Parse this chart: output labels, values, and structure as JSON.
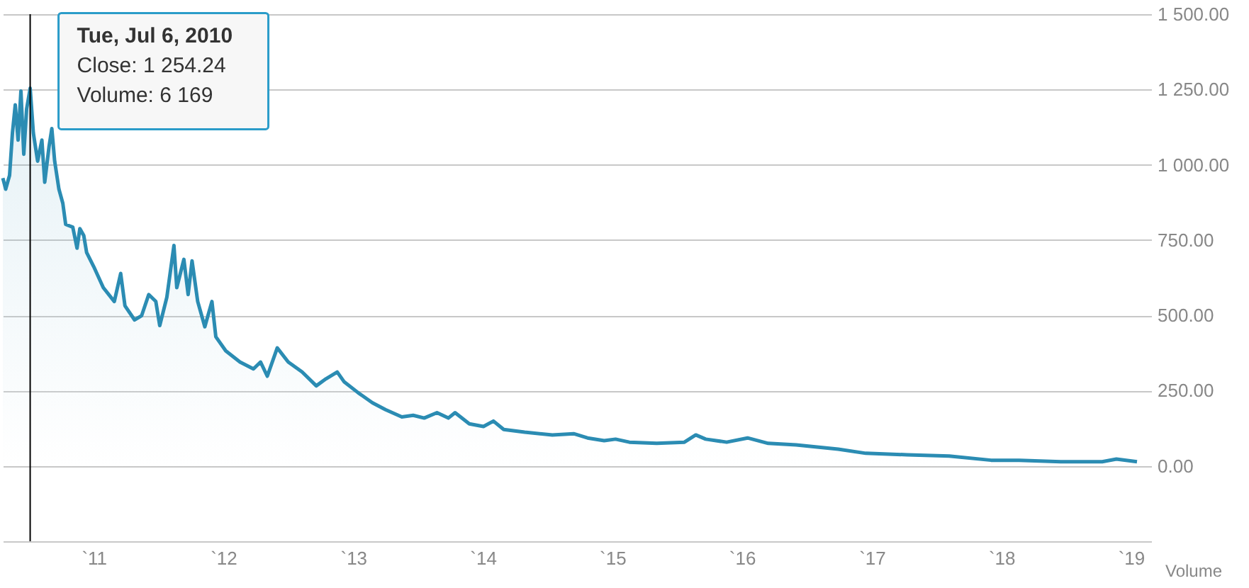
{
  "chart_data": {
    "type": "area",
    "x": [
      "2010-04-20",
      "2010-04-28",
      "2010-05-09",
      "2010-05-17",
      "2010-05-25",
      "2010-06-02",
      "2010-06-10",
      "2010-06-18",
      "2010-06-26",
      "2010-07-06",
      "2010-07-15",
      "2010-07-27",
      "2010-08-08",
      "2010-08-16",
      "2010-08-28",
      "2010-09-05",
      "2010-09-13",
      "2010-09-25",
      "2010-10-06",
      "2010-10-14",
      "2010-11-03",
      "2010-11-15",
      "2010-11-23",
      "2010-12-04",
      "2010-12-12",
      "2011-01-01",
      "2011-01-28",
      "2011-02-28",
      "2011-03-18",
      "2011-03-30",
      "2011-04-26",
      "2011-05-16",
      "2011-06-05",
      "2011-06-25",
      "2011-07-06",
      "2011-07-26",
      "2011-08-15",
      "2011-08-23",
      "2011-09-12",
      "2011-09-24",
      "2011-10-05",
      "2011-10-21",
      "2011-11-10",
      "2011-11-30",
      "2011-12-11",
      "2012-01-08",
      "2012-02-17",
      "2012-03-26",
      "2012-04-15",
      "2012-05-04",
      "2012-06-01",
      "2012-07-02",
      "2012-08-10",
      "2012-09-19",
      "2012-10-16",
      "2012-11-17",
      "2012-12-06",
      "2013-01-15",
      "2013-02-24",
      "2013-04-02",
      "2013-05-18",
      "2013-06-19",
      "2013-07-20",
      "2013-08-25",
      "2013-09-26",
      "2013-10-15",
      "2013-11-24",
      "2014-01-03",
      "2014-01-31",
      "2014-03-01",
      "2014-04-29",
      "2014-07-16",
      "2014-09-14",
      "2014-10-23",
      "2014-12-09",
      "2015-01-10",
      "2015-02-18",
      "2015-05-06",
      "2015-07-23",
      "2015-08-24",
      "2015-09-21",
      "2015-11-19",
      "2016-01-17",
      "2016-03-15",
      "2016-06-02",
      "2016-07-11",
      "2016-09-28",
      "2016-12-15",
      "2017-04-11",
      "2017-08-07",
      "2017-12-03",
      "2018-02-20",
      "2018-06-17",
      "2018-10-12",
      "2018-11-21",
      "2019-01-18"
    ],
    "series": [
      {
        "color": "#2b8cb3",
        "values": [
          956,
          919,
          965,
          1105,
          1199,
          1082,
          1245,
          1035,
          1185,
          1254,
          1105,
          1012,
          1082,
          942,
          1059,
          1120,
          1012,
          919,
          872,
          802,
          793,
          723,
          788,
          765,
          709,
          662,
          592,
          546,
          639,
          532,
          485,
          499,
          569,
          546,
          466,
          560,
          732,
          592,
          686,
          569,
          681,
          546,
          462,
          546,
          429,
          382,
          345,
          322,
          345,
          298,
          392,
          345,
          312,
          266,
          289,
          312,
          280,
          243,
          210,
          187,
          163,
          168,
          159,
          177,
          159,
          177,
          140,
          131,
          149,
          121,
          112,
          103,
          107,
          93,
          84,
          89,
          79,
          75,
          79,
          103,
          89,
          79,
          93,
          75,
          70,
          65,
          56,
          42,
          37,
          33,
          19,
          19,
          14,
          14,
          23,
          14
        ]
      }
    ],
    "xlim": [
      "2010-04-20",
      "2019-01-18"
    ],
    "xticks": [
      {
        "value": "2011-01-01",
        "label": "`11"
      },
      {
        "value": "2012-01-01",
        "label": "`12"
      },
      {
        "value": "2013-01-01",
        "label": "`13"
      },
      {
        "value": "2014-01-01",
        "label": "`14"
      },
      {
        "value": "2015-01-01",
        "label": "`15"
      },
      {
        "value": "2016-01-01",
        "label": "`16"
      },
      {
        "value": "2017-01-01",
        "label": "`17"
      },
      {
        "value": "2018-01-01",
        "label": "`18"
      },
      {
        "value": "2019-01-01",
        "label": "`19"
      }
    ],
    "ylim": [
      -250,
      1500
    ],
    "yticks": [
      {
        "value": -250,
        "label": null
      },
      {
        "value": 0,
        "label": "0.00"
      },
      {
        "value": 250,
        "label": "250.00"
      },
      {
        "value": 500,
        "label": "500.00"
      },
      {
        "value": 750,
        "label": "750.00"
      },
      {
        "value": 1000,
        "label": "1 000.00"
      },
      {
        "value": 1250,
        "label": "1 250.00"
      },
      {
        "value": 1500,
        "label": "1 500.00"
      }
    ],
    "grid": "y",
    "ref_lines": [
      {
        "axis": "x",
        "value": "2010-07-06",
        "color": "#000000"
      }
    ],
    "annotations": [
      {
        "text": "Tue, Jul 6, 2010\nClose: 1 254.24\nVolume: 6 169",
        "x": "2010-07-06",
        "y": 1254.24
      },
      "Volume"
    ]
  }
}
